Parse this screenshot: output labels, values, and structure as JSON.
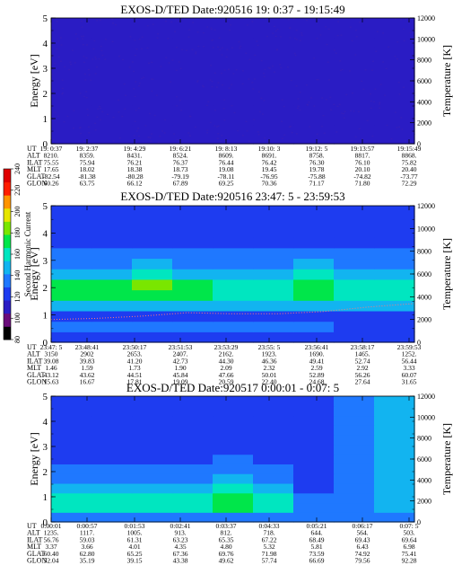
{
  "colorbar": {
    "label": "Second Harmonic Current",
    "ticks": [
      "80",
      "100",
      "120",
      "140",
      "160",
      "180",
      "200",
      "220",
      "240"
    ],
    "colors": [
      "#000000",
      "#6a0b7a",
      "#2a1cc4",
      "#1e3cf0",
      "#1f78ff",
      "#12b4f0",
      "#00e6c0",
      "#00e64a",
      "#7ae600",
      "#e6e600",
      "#ff9400",
      "#ff1e00",
      "#e00000"
    ]
  },
  "panels": [
    {
      "title": "EXOS-D/TED    Date:920516  19: 0:37 - 19:15:49",
      "ylabel_left": "Energy [eV]",
      "ylabel_right": "Temperature [K]",
      "yticks_left": [
        "0",
        "1",
        "2",
        "3",
        "4",
        "5"
      ],
      "yticks_right": [
        "0",
        "2000",
        "4000",
        "6000",
        "8000",
        "10000",
        "12000"
      ],
      "table": {
        "row_labels": [
          "UT",
          "ALT",
          "ILAT",
          "MLT",
          "GLAT",
          "GLON"
        ],
        "columns": [
          [
            "19: 0:37",
            "8210.",
            "75.55",
            "17.65",
            "-82.54",
            "60.26"
          ],
          [
            "19: 2:37",
            "8359.",
            "75.94",
            "18.02",
            "-81.38",
            "63.75"
          ],
          [
            "19: 4:29",
            "8431.",
            "76.21",
            "18.38",
            "-80.28",
            "66.12"
          ],
          [
            "19: 6:21",
            "8524.",
            "76.37",
            "18.73",
            "-79.19",
            "67.89"
          ],
          [
            "19: 8:13",
            "8609.",
            "76.44",
            "19.08",
            "-78.11",
            "69.25"
          ],
          [
            "19:10: 3",
            "8691.",
            "76.42",
            "19.45",
            "-76.95",
            "70.36"
          ],
          [
            "19:12: 5",
            "8758.",
            "76.30",
            "19.78",
            "-75.88",
            "71.17"
          ],
          [
            "19:13:57",
            "8817.",
            "76.10",
            "20.10",
            "-74.82",
            "71.80"
          ],
          [
            "19:15:49",
            "8868.",
            "75.82",
            "20.40",
            "-73.77",
            "72.29"
          ]
        ]
      }
    },
    {
      "title": "EXOS-D/TED    Date:920516  23:47: 5 - 23:59:53",
      "ylabel_left": "Energy [eV]",
      "ylabel_right": "Temperature [K]",
      "yticks_left": [
        "0",
        "1",
        "2",
        "3",
        "4",
        "5"
      ],
      "yticks_right": [
        "0",
        "2000",
        "4000",
        "6000",
        "8000",
        "10000",
        "12000"
      ],
      "table": {
        "row_labels": [
          "UT",
          "ALT",
          "ILAT",
          "MLT",
          "GLAT",
          "GLON"
        ],
        "columns": [
          [
            "23:47: 5",
            "3150",
            "39.08",
            "1.46",
            "43.12",
            "15.63"
          ],
          [
            "23:48:41",
            "2902",
            "39.83",
            "1.59",
            "43.62",
            "16.67"
          ],
          [
            "23:50:17",
            "2653.",
            "41.20",
            "1.73",
            "44.51",
            "17.81"
          ],
          [
            "23:51:53",
            "2407.",
            "42.73",
            "1.90",
            "45.84",
            "19.09"
          ],
          [
            "23:53:29",
            "2162.",
            "44.30",
            "2.09",
            "47.66",
            "20.59"
          ],
          [
            "23:55: 5",
            "1923.",
            "46.36",
            "2.32",
            "50.01",
            "22.40"
          ],
          [
            "23:56:41",
            "1690.",
            "49.41",
            "2.59",
            "52.89",
            "24.68"
          ],
          [
            "23:58:17",
            "1465.",
            "52.74",
            "2.92",
            "56.26",
            "27.64"
          ],
          [
            "23:59:53",
            "1252.",
            "56.44",
            "3.33",
            "60.07",
            "31.65"
          ]
        ]
      }
    },
    {
      "title": "EXOS-D/TED    Date:920517  0:00:01 - 0:07: 5",
      "ylabel_left": "Energy [eV]",
      "ylabel_right": "Temperature [K]",
      "yticks_left": [
        "0",
        "1",
        "2",
        "3",
        "4",
        "5"
      ],
      "yticks_right": [
        "0",
        "2000",
        "4000",
        "6000",
        "8000",
        "10000",
        "12000"
      ],
      "table": {
        "row_labels": [
          "UT",
          "ALT",
          "ILAT",
          "MLT",
          "GLAT",
          "GLON"
        ],
        "columns": [
          [
            "0:00:01",
            "1235.",
            "56.76",
            "3.37",
            "60.40",
            "32.04"
          ],
          [
            "0:00:57",
            "1117.",
            "59.03",
            "3.66",
            "62.80",
            "35.19"
          ],
          [
            "0:01:53",
            "1005.",
            "61.31",
            "4.01",
            "65.25",
            "39.15"
          ],
          [
            "0:02:41",
            "913.",
            "63.23",
            "4.35",
            "67.36",
            "43.38"
          ],
          [
            "0:03:37",
            "812.",
            "65.35",
            "4.80",
            "69.76",
            "49.62"
          ],
          [
            "0:04:33",
            "718.",
            "67.22",
            "5.32",
            "71.98",
            "57.74"
          ],
          [
            "0:05:21",
            "644.",
            "68.49",
            "5.81",
            "73.59",
            "66.69"
          ],
          [
            "0:06:17",
            "564.",
            "69.43",
            "6.43",
            "74.92",
            "79.56"
          ],
          [
            "0:07: 5",
            "503.",
            "69.64",
            "6.98",
            "75.41",
            "92.28"
          ]
        ]
      }
    }
  ],
  "chart_data": [
    {
      "type": "heatmap",
      "title": "EXOS-D/TED    Date:920516  19: 0:37 - 19:15:49",
      "ylabel": "Energy [eV]",
      "ylabel_right": "Temperature [K]",
      "ylim": [
        0,
        5
      ],
      "ylim_right": [
        0,
        12000
      ],
      "x": [
        "19: 0:37",
        "19: 2:37",
        "19: 4:29",
        "19: 6:21",
        "19: 8:13",
        "19:10: 3",
        "19:12: 5",
        "19:13:57",
        "19:15:49"
      ],
      "energy_rows": [
        0.2,
        0.6,
        1.0,
        1.4,
        1.8,
        2.2,
        2.6,
        3.0,
        3.4,
        3.8,
        4.2,
        4.6,
        5.0
      ],
      "levels": [
        [
          2,
          2,
          2,
          2,
          2,
          2,
          2,
          2,
          2
        ],
        [
          2,
          2,
          2,
          2,
          2,
          2,
          2,
          2,
          2
        ],
        [
          2,
          2,
          2,
          2,
          2,
          2,
          2,
          2,
          2
        ],
        [
          2,
          2,
          2,
          2,
          2,
          2,
          2,
          2,
          2
        ],
        [
          2,
          2,
          2,
          2,
          2,
          2,
          2,
          2,
          2
        ],
        [
          2,
          2,
          2,
          2,
          2,
          2,
          2,
          2,
          2
        ],
        [
          2,
          2,
          2,
          2,
          2,
          2,
          2,
          2,
          2
        ],
        [
          2,
          2,
          2,
          2,
          2,
          2,
          2,
          2,
          2
        ],
        [
          2,
          2,
          2,
          2,
          2,
          2,
          2,
          2,
          2
        ],
        [
          2,
          2,
          2,
          2,
          2,
          2,
          2,
          2,
          2
        ],
        [
          2,
          2,
          2,
          2,
          2,
          2,
          2,
          2,
          2
        ],
        [
          2,
          2,
          2,
          2,
          2,
          2,
          2,
          2,
          2
        ],
        [
          2,
          2,
          2,
          2,
          2,
          2,
          2,
          2,
          2
        ]
      ]
    },
    {
      "type": "heatmap",
      "title": "EXOS-D/TED    Date:920516  23:47: 5 - 23:59:53",
      "ylabel": "Energy [eV]",
      "ylabel_right": "Temperature [K]",
      "ylim": [
        0,
        5
      ],
      "ylim_right": [
        0,
        12000
      ],
      "x": [
        "23:47: 5",
        "23:48:41",
        "23:50:17",
        "23:51:53",
        "23:53:29",
        "23:55: 5",
        "23:56:41",
        "23:58:17",
        "23:59:53"
      ],
      "energy_rows": [
        0.2,
        0.6,
        1.0,
        1.4,
        1.8,
        2.2,
        2.6,
        3.0,
        3.4,
        3.8,
        4.2,
        4.6,
        5.0
      ],
      "levels": [
        [
          3,
          3,
          3,
          3,
          3,
          3,
          3,
          3,
          3
        ],
        [
          4,
          4,
          4,
          4,
          4,
          4,
          4,
          3,
          3
        ],
        [
          3,
          3,
          3,
          3,
          3,
          3,
          3,
          3,
          3
        ],
        [
          5,
          5,
          5,
          5,
          5,
          5,
          5,
          5,
          5
        ],
        [
          7,
          7,
          7,
          7,
          6,
          6,
          7,
          6,
          6
        ],
        [
          7,
          7,
          8,
          7,
          6,
          6,
          7,
          6,
          6
        ],
        [
          5,
          5,
          6,
          5,
          5,
          5,
          6,
          5,
          5
        ],
        [
          4,
          4,
          5,
          4,
          4,
          4,
          5,
          4,
          4
        ],
        [
          4,
          4,
          4,
          4,
          4,
          4,
          4,
          4,
          4
        ],
        [
          3,
          3,
          3,
          3,
          3,
          3,
          3,
          3,
          3
        ],
        [
          3,
          3,
          3,
          3,
          3,
          3,
          3,
          3,
          3
        ],
        [
          3,
          3,
          3,
          3,
          3,
          3,
          3,
          3,
          3
        ],
        [
          3,
          3,
          3,
          3,
          3,
          3,
          3,
          3,
          3
        ]
      ],
      "temperature_k": [
        2000,
        2100,
        2300,
        2600,
        2500,
        2500,
        2700,
        3100,
        3400
      ]
    },
    {
      "type": "heatmap",
      "title": "EXOS-D/TED    Date:920517  0:00:01 - 0:07: 5",
      "ylabel": "Energy [eV]",
      "ylabel_right": "Temperature [K]",
      "ylim": [
        0,
        5
      ],
      "ylim_right": [
        0,
        12000
      ],
      "x": [
        "0:00:01",
        "0:00:57",
        "0:01:53",
        "0:02:41",
        "0:03:37",
        "0:04:33",
        "0:05:21",
        "0:06:17",
        "0:07: 5"
      ],
      "energy_rows": [
        0.2,
        0.6,
        1.0,
        1.4,
        1.8,
        2.2,
        2.6,
        3.0,
        3.4,
        3.8,
        4.2,
        4.6,
        5.0
      ],
      "levels": [
        [
          4,
          4,
          4,
          4,
          4,
          4,
          4,
          4,
          4
        ],
        [
          6,
          6,
          6,
          6,
          7,
          6,
          4,
          4,
          5
        ],
        [
          6,
          6,
          6,
          6,
          7,
          6,
          4,
          4,
          5
        ],
        [
          5,
          5,
          5,
          5,
          6,
          5,
          3,
          4,
          5
        ],
        [
          4,
          4,
          4,
          4,
          5,
          4,
          3,
          4,
          5
        ],
        [
          4,
          4,
          4,
          4,
          4,
          4,
          3,
          4,
          5
        ],
        [
          3,
          3,
          3,
          3,
          4,
          3,
          3,
          4,
          5
        ],
        [
          3,
          3,
          3,
          3,
          3,
          3,
          3,
          4,
          5
        ],
        [
          3,
          3,
          3,
          3,
          3,
          3,
          3,
          4,
          5
        ],
        [
          3,
          3,
          3,
          3,
          3,
          3,
          3,
          4,
          5
        ],
        [
          3,
          3,
          3,
          3,
          3,
          3,
          3,
          4,
          5
        ],
        [
          3,
          3,
          3,
          3,
          3,
          3,
          3,
          4,
          5
        ],
        [
          3,
          3,
          3,
          3,
          3,
          3,
          3,
          4,
          5
        ]
      ]
    }
  ]
}
